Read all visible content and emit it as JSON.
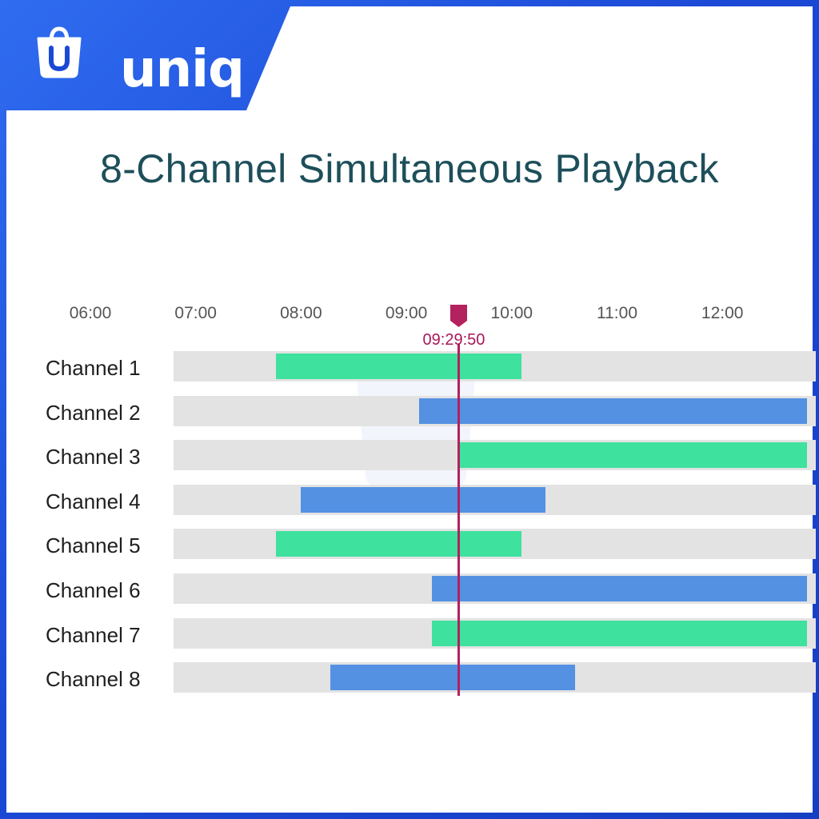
{
  "brand": {
    "name": "uniq",
    "logo_icon": "shopping-bag-icon",
    "frame_color": "#1b49d6"
  },
  "title": "8-Channel Simultaneous Playback",
  "chart_data": {
    "type": "timeline",
    "x_ticks": [
      "06:00",
      "07:00",
      "08:00",
      "09:00",
      "10:00",
      "11:00",
      "12:00"
    ],
    "x_range": [
      5.5,
      12.8
    ],
    "playhead": {
      "label": "09:29:50",
      "time": 9.497
    },
    "series_colors": {
      "green": "#3ee19e",
      "blue": "#5491e2"
    },
    "channels": [
      {
        "label": "Channel 1",
        "start": 7.76,
        "end": 10.09,
        "color": "green"
      },
      {
        "label": "Channel 2",
        "start": 9.12,
        "end": 12.8,
        "color": "blue"
      },
      {
        "label": "Channel 3",
        "start": 9.5,
        "end": 12.8,
        "color": "green"
      },
      {
        "label": "Channel 4",
        "start": 8.0,
        "end": 10.32,
        "color": "blue"
      },
      {
        "label": "Channel 5",
        "start": 7.76,
        "end": 10.09,
        "color": "green"
      },
      {
        "label": "Channel 6",
        "start": 9.24,
        "end": 12.8,
        "color": "blue"
      },
      {
        "label": "Channel 7",
        "start": 9.24,
        "end": 12.8,
        "color": "green"
      },
      {
        "label": "Channel 8",
        "start": 8.28,
        "end": 10.6,
        "color": "blue"
      }
    ],
    "track_color": "#e3e3e3",
    "playhead_color": "#b3215f"
  }
}
